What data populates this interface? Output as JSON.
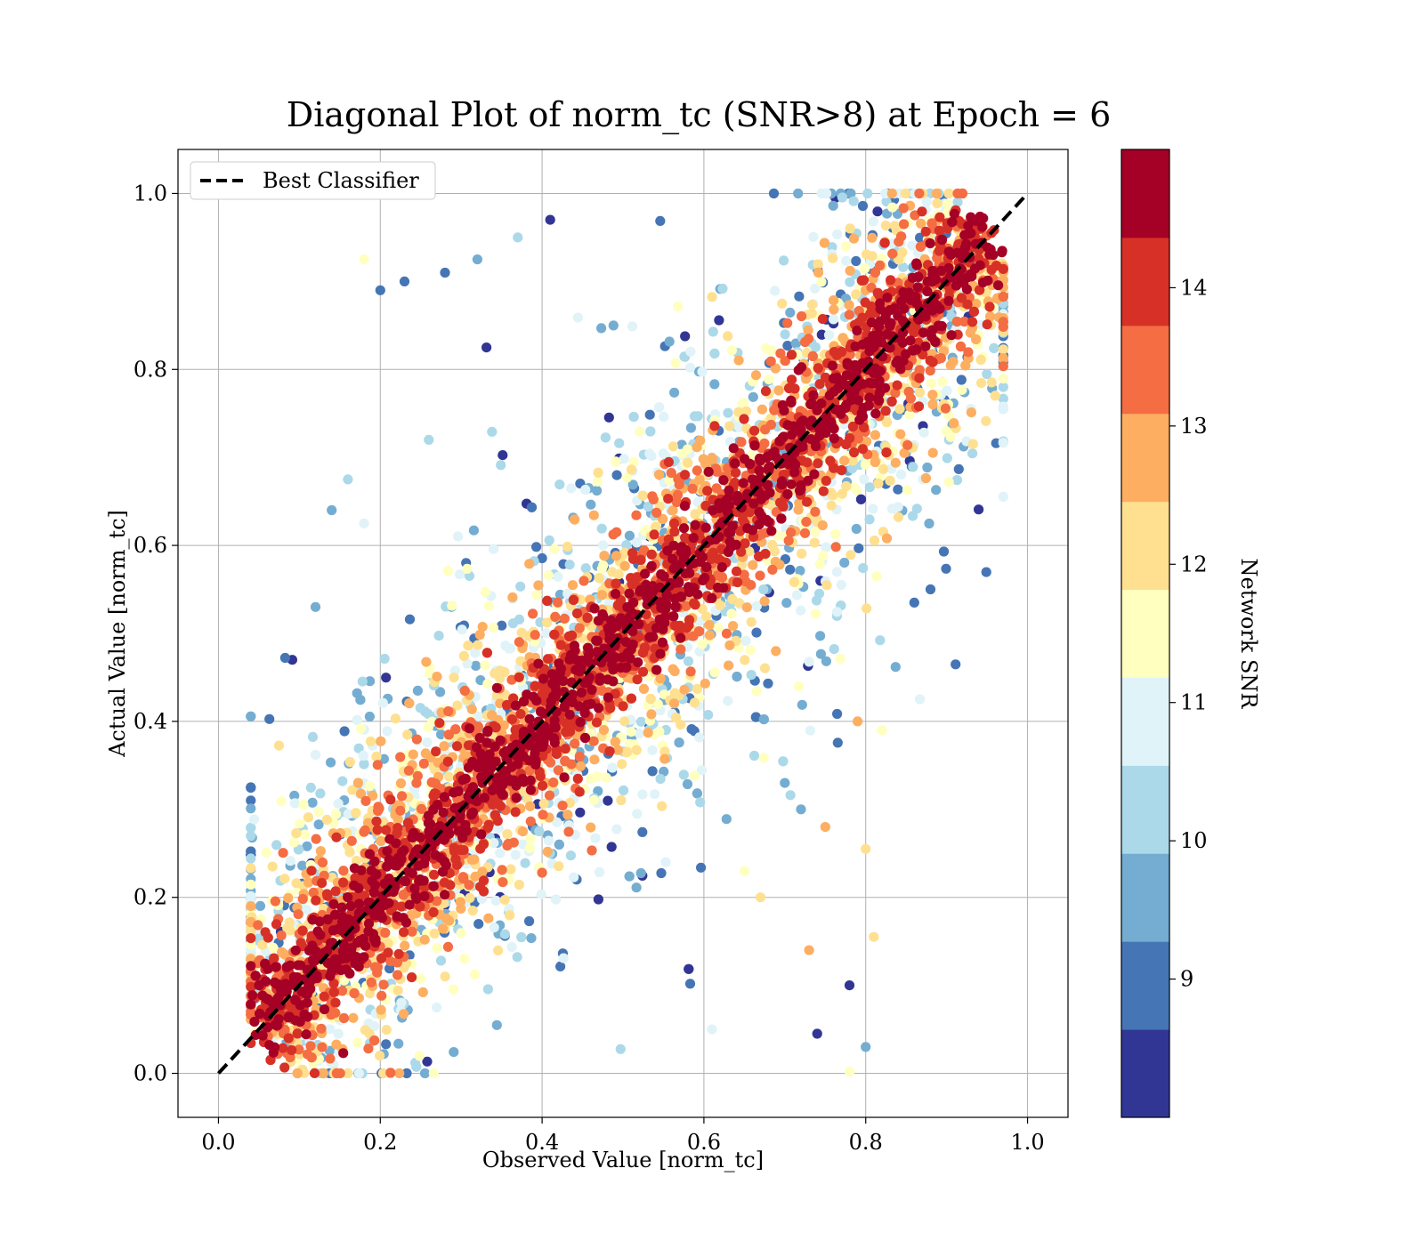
{
  "chart_data": {
    "type": "scatter",
    "title": "Diagonal Plot of norm_tc (SNR>8) at Epoch = 6",
    "xlabel": "Observed Value [norm_tc]",
    "ylabel": "Actual Value [norm_tc]",
    "xlim": [
      -0.05,
      1.05
    ],
    "ylim": [
      -0.05,
      1.05
    ],
    "xticks": [
      "0.0",
      "0.2",
      "0.4",
      "0.6",
      "0.8",
      "1.0"
    ],
    "yticks": [
      "0.0",
      "0.2",
      "0.4",
      "0.6",
      "0.8",
      "1.0"
    ],
    "grid": true,
    "legend": {
      "position": "top-left",
      "entries": [
        "Best Classifier"
      ]
    },
    "reference_line": {
      "name": "Best Classifier",
      "x": [
        0,
        1
      ],
      "y": [
        0,
        1
      ],
      "style": "dashed",
      "color": "#000000"
    },
    "colorbar": {
      "label": "Network SNR",
      "range": [
        8,
        15
      ],
      "ticks": [
        "9",
        "10",
        "11",
        "12",
        "13",
        "14"
      ],
      "colors": [
        "#313695",
        "#4575b4",
        "#74add1",
        "#abd9e9",
        "#e0f3f8",
        "#ffffbf",
        "#fee090",
        "#fdae61",
        "#f46d43",
        "#d73027",
        "#a50026"
      ]
    },
    "series": [
      {
        "description": "dense high-SNR band along the diagonal",
        "snr": ">=14",
        "color": "#a50026",
        "x_range": [
          0.05,
          0.95
        ],
        "y_range": [
          0.0,
          1.0
        ]
      },
      {
        "description": "scattered lower-SNR points off-diagonal",
        "snr": "8-13",
        "points": [
          [
            0.18,
            0.925
          ],
          [
            0.2,
            0.89
          ],
          [
            0.23,
            0.9
          ],
          [
            0.28,
            0.91
          ],
          [
            0.32,
            0.925
          ],
          [
            0.37,
            0.95
          ],
          [
            0.41,
            0.97
          ],
          [
            0.16,
            0.675
          ],
          [
            0.14,
            0.64
          ],
          [
            0.12,
            0.53
          ],
          [
            0.18,
            0.625
          ],
          [
            0.26,
            0.72
          ],
          [
            0.74,
            0.045
          ],
          [
            0.78,
            0.002
          ],
          [
            0.8,
            0.03
          ],
          [
            0.81,
            0.155
          ],
          [
            0.79,
            0.4
          ],
          [
            0.82,
            0.39
          ],
          [
            0.8,
            0.255
          ],
          [
            0.86,
            0.535
          ],
          [
            0.88,
            0.55
          ],
          [
            0.96,
            0.77
          ],
          [
            0.78,
            0.1
          ],
          [
            0.61,
            0.05
          ],
          [
            0.67,
            0.2
          ],
          [
            0.75,
            0.28
          ],
          [
            0.65,
            0.23
          ],
          [
            0.7,
            0.33
          ],
          [
            0.72,
            0.3
          ],
          [
            0.73,
            0.14
          ]
        ]
      }
    ]
  }
}
